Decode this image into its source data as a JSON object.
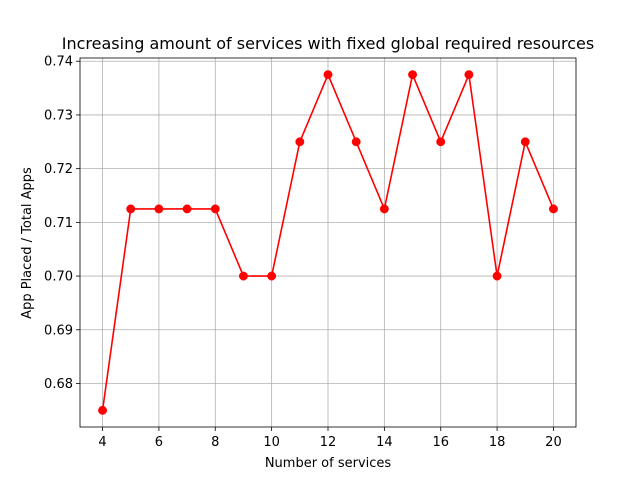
{
  "chart_data": {
    "type": "line",
    "title": "Increasing amount of services with fixed global required resources",
    "xlabel": "Number of services",
    "ylabel": "App Placed / Total Apps",
    "x": [
      4,
      5,
      6,
      7,
      8,
      9,
      10,
      11,
      12,
      13,
      14,
      15,
      16,
      17,
      18,
      19,
      20
    ],
    "series": [
      {
        "values": [
          0.675,
          0.7125,
          0.7125,
          0.7125,
          0.7125,
          0.7,
          0.7,
          0.725,
          0.7375,
          0.725,
          0.7125,
          0.7375,
          0.725,
          0.7375,
          0.7,
          0.725,
          0.7125
        ],
        "color": "#ff0000",
        "marker": "circle"
      }
    ],
    "xticks": [
      "4",
      "6",
      "8",
      "10",
      "12",
      "14",
      "16",
      "18",
      "20"
    ],
    "yticks": [
      "0.68",
      "0.69",
      "0.70",
      "0.71",
      "0.72",
      "0.73",
      "0.74"
    ],
    "xlim": [
      3.2,
      20.8
    ],
    "ylim": [
      0.6719,
      0.7406
    ],
    "grid": true,
    "legend": "none"
  }
}
